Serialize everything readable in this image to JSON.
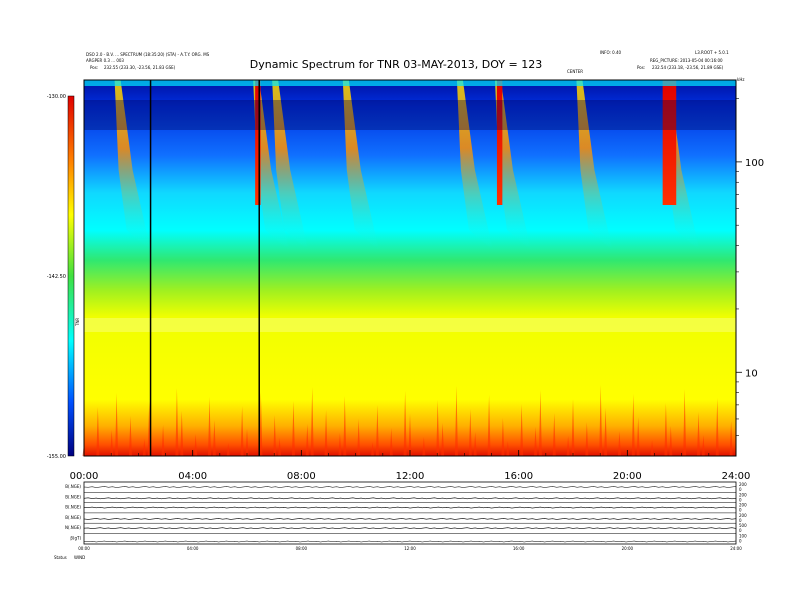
{
  "header": {
    "left_line1": "DSO 2.0 - B.V. ... SPECTRUM (18:35:20) (STA) - A.T.Y. ORG. MS",
    "left_line2": "ARGPER 0.3 ... 003",
    "left_pos_label": "Pos:",
    "left_pos_value": "232.55 (233.30, -23.56, 21.83 GSE)",
    "right_line1": "INFO: 0.40",
    "right_line1b": "L3.ROOT + 5.0.1",
    "right_line2": "REG_PICTURE: 2013-05-04 00:16:00",
    "right_pos_label": "Pos:",
    "right_pos_value": "232.54 (233.18, -23.56, 21.89 GSE)",
    "mid_label": "CENTER",
    "khz_label": "kHz"
  },
  "title": "Dynamic Spectrum for TNR 03-MAY-2013, DOY = 123",
  "colorbar": {
    "labels": [
      "-130.00",
      "-142.50",
      "-155.00"
    ],
    "unit_label": "TNR"
  },
  "chart_data": {
    "type": "heatmap",
    "title": "Dynamic Spectrum for TNR 03-MAY-2013, DOY = 123",
    "x_label": "",
    "y_label": "kHz",
    "x_range": [
      "00:00",
      "24:00"
    ],
    "x_ticks": [
      "00:00",
      "04:00",
      "08:00",
      "12:00",
      "16:00",
      "20:00",
      "24:00"
    ],
    "y_scale": "log",
    "y_range_khz": [
      4,
      245
    ],
    "y_ticks": [
      10,
      100
    ],
    "color_range_db": [
      -155.0,
      -130.0
    ],
    "color_ticks": [
      -130.0,
      -142.5,
      -155.0
    ],
    "data_gaps_hours": [
      2.45,
      6.45
    ],
    "type_iii_bursts_start_hours": [
      1.2,
      6.3,
      7.0,
      9.6,
      13.8,
      15.2,
      18.2,
      21.4
    ],
    "strong_emission_hours": [
      [
        6.3,
        6.5
      ],
      [
        15.2,
        15.4
      ],
      [
        21.3,
        21.8
      ]
    ]
  },
  "strips": {
    "labels": [
      "B(.NGE)",
      "B(.NGE)",
      "B(.NGE)",
      "B(.NGE)",
      "N(.NGE)",
      "β(gT)"
    ],
    "right_ticks": [
      [
        "200",
        "0"
      ],
      [
        "200",
        "0"
      ],
      [
        "200",
        "0"
      ],
      [
        "200",
        "0"
      ],
      [
        "500",
        "0"
      ],
      [
        "100",
        "0"
      ]
    ],
    "x_ticks": [
      "00:00",
      "04:00",
      "08:00",
      "12:00",
      "16:00",
      "20:00",
      "24:00"
    ],
    "footer_label": "Status",
    "footer_value": "WIND"
  }
}
